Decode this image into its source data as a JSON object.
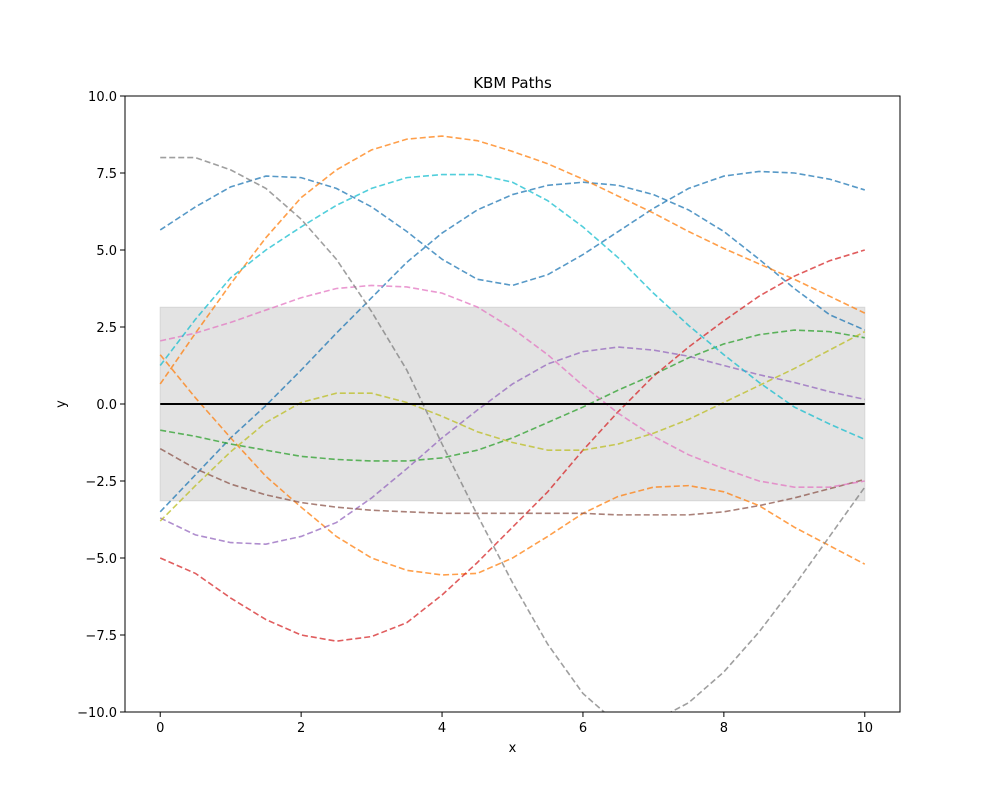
{
  "chart_data": {
    "type": "line",
    "title": "KBM Paths",
    "xlabel": "x",
    "ylabel": "y",
    "xlim": [
      -0.5,
      10.5
    ],
    "ylim": [
      -10,
      10
    ],
    "xticks": [
      0,
      2,
      4,
      6,
      8,
      10
    ],
    "yticks": [
      -10.0,
      -7.5,
      -5.0,
      -2.5,
      0.0,
      2.5,
      5.0,
      7.5,
      10.0
    ],
    "xtick_labels": [
      "0",
      "2",
      "4",
      "6",
      "8",
      "10"
    ],
    "ytick_labels": [
      "−10.0",
      "−7.5",
      "−5.0",
      "−2.5",
      "0.0",
      "2.5",
      "5.0",
      "7.5",
      "10.0"
    ],
    "grid": false,
    "band": {
      "x": [
        0,
        10
      ],
      "y": [
        -3.14,
        3.14
      ],
      "color": "#e3e3e3"
    },
    "mean_line": {
      "y": 0,
      "color": "#000000"
    },
    "series": [
      {
        "color": "#1f77b4",
        "x": [
          0,
          0.5,
          1,
          1.5,
          2,
          2.5,
          3,
          3.5,
          4,
          4.5,
          5,
          5.5,
          6,
          6.5,
          7,
          7.5,
          8,
          8.5,
          9,
          9.5,
          10
        ],
        "y": [
          5.65,
          6.4,
          7.05,
          7.4,
          7.35,
          7.0,
          6.4,
          5.6,
          4.7,
          4.05,
          3.85,
          4.2,
          4.85,
          5.6,
          6.35,
          7.0,
          7.4,
          7.55,
          7.5,
          7.3,
          6.95
        ]
      },
      {
        "color": "#1f77b4",
        "x": [
          0,
          0.5,
          1,
          1.5,
          2,
          2.5,
          3,
          3.5,
          4,
          4.5,
          5,
          5.5,
          6,
          6.5,
          7,
          7.5,
          8,
          8.5,
          9,
          9.5,
          10
        ],
        "y": [
          -3.5,
          -2.3,
          -1.1,
          -0.05,
          1.1,
          2.3,
          3.45,
          4.6,
          5.55,
          6.3,
          6.8,
          7.1,
          7.2,
          7.1,
          6.8,
          6.3,
          5.6,
          4.7,
          3.75,
          2.9,
          2.4
        ]
      },
      {
        "color": "#ff7f0e",
        "x": [
          0,
          0.5,
          1,
          1.5,
          2,
          2.5,
          3,
          3.5,
          4,
          4.5,
          5,
          5.5,
          6,
          6.5,
          7,
          7.5,
          8,
          8.5,
          9,
          9.5,
          10
        ],
        "y": [
          0.65,
          2.3,
          3.9,
          5.4,
          6.7,
          7.6,
          8.25,
          8.6,
          8.7,
          8.55,
          8.2,
          7.8,
          7.3,
          6.75,
          6.2,
          5.6,
          5.05,
          4.55,
          4.05,
          3.5,
          2.95
        ]
      },
      {
        "color": "#ff7f0e",
        "x": [
          0,
          0.5,
          1,
          1.5,
          2,
          2.5,
          3,
          3.5,
          4,
          4.5,
          5,
          5.5,
          6,
          6.5,
          7,
          7.5,
          8,
          8.5,
          9,
          9.5,
          10
        ],
        "y": [
          1.6,
          0.2,
          -1.1,
          -2.35,
          -3.35,
          -4.3,
          -5.0,
          -5.4,
          -5.55,
          -5.5,
          -5.0,
          -4.3,
          -3.55,
          -3.0,
          -2.7,
          -2.65,
          -2.85,
          -3.3,
          -4.0,
          -4.6,
          -5.2
        ]
      },
      {
        "color": "#2ca02c",
        "x": [
          0,
          0.5,
          1,
          1.5,
          2,
          2.5,
          3,
          3.5,
          4,
          4.5,
          5,
          5.5,
          6,
          6.5,
          7,
          7.5,
          8,
          8.5,
          9,
          9.5,
          10
        ],
        "y": [
          -0.85,
          -1.05,
          -1.3,
          -1.5,
          -1.7,
          -1.8,
          -1.85,
          -1.85,
          -1.75,
          -1.5,
          -1.1,
          -0.6,
          -0.1,
          0.45,
          0.95,
          1.5,
          1.95,
          2.25,
          2.4,
          2.35,
          2.15
        ]
      },
      {
        "color": "#d62728",
        "x": [
          0,
          0.5,
          1,
          1.5,
          2,
          2.5,
          3,
          3.5,
          4,
          4.5,
          5,
          5.5,
          6,
          6.5,
          7,
          7.5,
          8,
          8.5,
          9,
          9.5,
          10
        ],
        "y": [
          -5.0,
          -5.5,
          -6.3,
          -7.0,
          -7.5,
          -7.7,
          -7.55,
          -7.1,
          -6.2,
          -5.15,
          -4.0,
          -2.85,
          -1.5,
          -0.25,
          0.9,
          1.85,
          2.7,
          3.5,
          4.15,
          4.65,
          5.0
        ]
      },
      {
        "color": "#9467bd",
        "x": [
          0,
          0.5,
          1,
          1.5,
          2,
          2.5,
          3,
          3.5,
          4,
          4.5,
          5,
          5.5,
          6,
          6.5,
          7,
          7.5,
          8,
          8.5,
          9,
          9.5,
          10
        ],
        "y": [
          -3.7,
          -4.25,
          -4.5,
          -4.55,
          -4.3,
          -3.85,
          -3.05,
          -2.1,
          -1.1,
          -0.2,
          0.65,
          1.3,
          1.7,
          1.85,
          1.75,
          1.55,
          1.25,
          0.95,
          0.7,
          0.4,
          0.15
        ]
      },
      {
        "color": "#8c564b",
        "x": [
          0,
          0.5,
          1,
          1.5,
          2,
          2.5,
          3,
          3.5,
          4,
          4.5,
          5,
          5.5,
          6,
          6.5,
          7,
          7.5,
          8,
          8.5,
          9,
          9.5,
          10
        ],
        "y": [
          -1.45,
          -2.1,
          -2.6,
          -2.95,
          -3.2,
          -3.35,
          -3.45,
          -3.5,
          -3.55,
          -3.55,
          -3.55,
          -3.55,
          -3.55,
          -3.6,
          -3.6,
          -3.6,
          -3.5,
          -3.3,
          -3.05,
          -2.75,
          -2.45
        ]
      },
      {
        "color": "#e377c2",
        "x": [
          0,
          0.5,
          1,
          1.5,
          2,
          2.5,
          3,
          3.5,
          4,
          4.5,
          5,
          5.5,
          6,
          6.5,
          7,
          7.5,
          8,
          8.5,
          9,
          9.5,
          10
        ],
        "y": [
          2.05,
          2.3,
          2.65,
          3.05,
          3.45,
          3.75,
          3.85,
          3.8,
          3.6,
          3.15,
          2.45,
          1.6,
          0.6,
          -0.3,
          -1.05,
          -1.65,
          -2.1,
          -2.5,
          -2.7,
          -2.7,
          -2.5
        ]
      },
      {
        "color": "#7f7f7f",
        "x": [
          0,
          0.5,
          1,
          1.5,
          2,
          2.5,
          3,
          3.5,
          4,
          4.5,
          5,
          5.5,
          6,
          6.5,
          7,
          7.5,
          8,
          8.5,
          9,
          9.5,
          10
        ],
        "y": [
          8.0,
          8.0,
          7.6,
          7.0,
          6.0,
          4.7,
          3.0,
          1.1,
          -1.3,
          -3.6,
          -5.8,
          -7.8,
          -9.4,
          -10.4,
          -10.3,
          -9.7,
          -8.7,
          -7.4,
          -5.9,
          -4.3,
          -2.7
        ]
      },
      {
        "color": "#bcbd22",
        "x": [
          0,
          0.5,
          1,
          1.5,
          2,
          2.5,
          3,
          3.5,
          4,
          4.5,
          5,
          5.5,
          6,
          6.5,
          7,
          7.5,
          8,
          8.5,
          9,
          9.5,
          10
        ],
        "y": [
          -3.8,
          -2.65,
          -1.55,
          -0.6,
          0.05,
          0.35,
          0.35,
          0.05,
          -0.4,
          -0.9,
          -1.25,
          -1.5,
          -1.5,
          -1.3,
          -0.95,
          -0.5,
          0.05,
          0.6,
          1.15,
          1.75,
          2.35
        ]
      },
      {
        "color": "#17becf",
        "x": [
          0,
          0.5,
          1,
          1.5,
          2,
          2.5,
          3,
          3.5,
          4,
          4.5,
          5,
          5.5,
          6,
          6.5,
          7,
          7.5,
          8,
          8.5,
          9,
          9.5,
          10
        ],
        "y": [
          1.25,
          2.75,
          4.1,
          5.0,
          5.75,
          6.45,
          7.0,
          7.35,
          7.45,
          7.45,
          7.2,
          6.6,
          5.75,
          4.75,
          3.6,
          2.55,
          1.6,
          0.7,
          -0.1,
          -0.65,
          -1.15
        ]
      }
    ]
  }
}
